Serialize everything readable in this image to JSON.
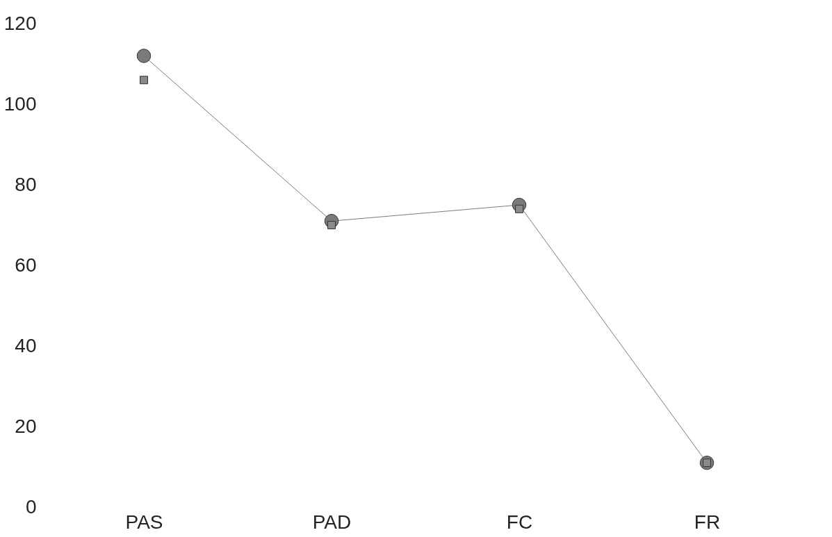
{
  "chart_data": {
    "type": "line",
    "categories": [
      "PAS",
      "PAD",
      "FC",
      "FR"
    ],
    "series": [
      {
        "color": "#7a7a7a",
        "values": [
          112,
          71,
          75,
          11
        ],
        "marker": "circle"
      },
      {
        "type": "scatter",
        "color": "#8a8a8a",
        "values": [
          106,
          70,
          74,
          11
        ],
        "marker": "square"
      }
    ],
    "ylim": [
      0,
      120
    ],
    "yticks": [
      0,
      20,
      40,
      60,
      80,
      100,
      120
    ],
    "grid": false,
    "line_style": "solid"
  }
}
